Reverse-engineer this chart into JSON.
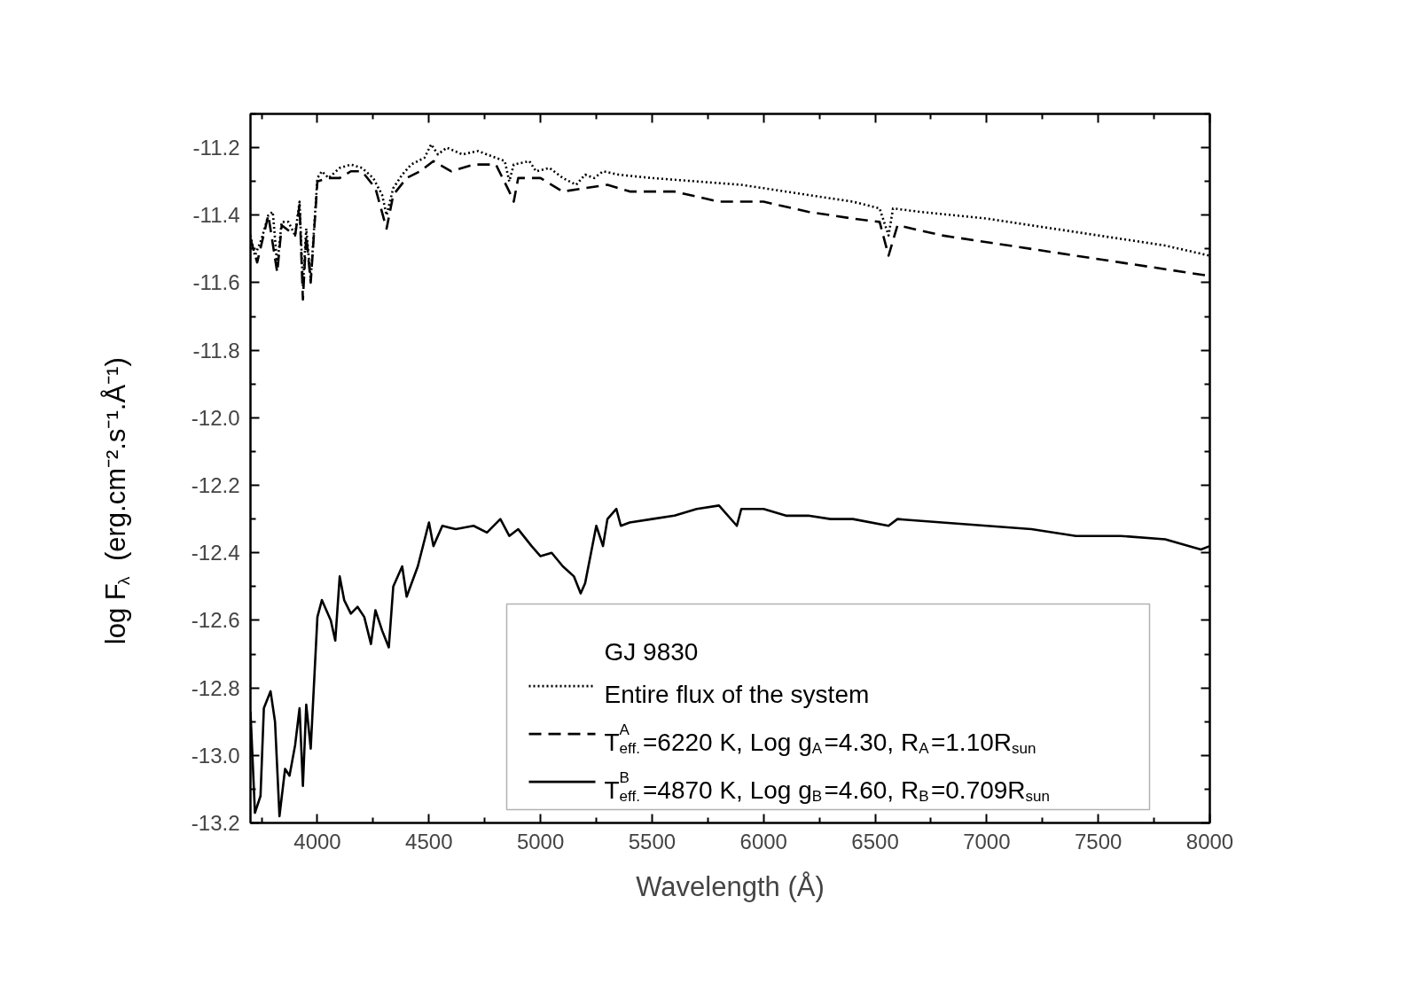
{
  "chart_data": {
    "type": "line",
    "xlabel": "Wavelength (Å)",
    "ylabel": "log F$_{λ}$ (erg.cm⁻².s⁻¹.Å⁻¹)",
    "legend_title": "GJ 9830",
    "xlim": [
      3700,
      8000
    ],
    "xticks": [
      4000,
      4500,
      5000,
      5500,
      6000,
      6500,
      7000,
      7500,
      8000
    ],
    "ylim": [
      -13.2,
      -11.1
    ],
    "yticks": [
      {
        "value": -13.2,
        "label": "-13.2"
      },
      {
        "value": -13.0,
        "label": "-13.0"
      },
      {
        "value": -12.8,
        "label": "-12.8"
      },
      {
        "value": -12.6,
        "label": "-12.6"
      },
      {
        "value": -12.4,
        "label": "-12.4"
      },
      {
        "value": -12.2,
        "label": "-12.2"
      },
      {
        "value": -12.0,
        "label": "-12.0"
      },
      {
        "value": -11.8,
        "label": "-11.8"
      },
      {
        "value": -11.6,
        "label": "-11.6"
      },
      {
        "value": -11.4,
        "label": "-11.4"
      },
      {
        "value": -11.2,
        "label": "-11.2"
      }
    ],
    "grid": false,
    "legend": "bottom right",
    "marker": "none",
    "series": [
      {
        "name": "Entire flux of the system",
        "color": "#000000",
        "line_style": "dotted",
        "x": [
          3700,
          3720,
          3750,
          3780,
          3800,
          3820,
          3840,
          3870,
          3900,
          3920,
          3935,
          3950,
          3970,
          4000,
          4020,
          4050,
          4100,
          4150,
          4200,
          4250,
          4290,
          4310,
          4340,
          4380,
          4420,
          4480,
          4510,
          4540,
          4580,
          4650,
          4720,
          4800,
          4840,
          4860,
          4880,
          4950,
          4980,
          5040,
          5100,
          5160,
          5200,
          5240,
          5280,
          5350,
          5500,
          5700,
          5900,
          6000,
          6200,
          6400,
          6520,
          6560,
          6580,
          6700,
          7000,
          7300,
          7600,
          7800,
          8000
        ],
        "values": [
          -11.46,
          -11.52,
          -11.47,
          -11.4,
          -11.39,
          -11.55,
          -11.42,
          -11.42,
          -11.46,
          -11.36,
          -11.61,
          -11.44,
          -11.59,
          -11.29,
          -11.27,
          -11.29,
          -11.26,
          -11.25,
          -11.26,
          -11.29,
          -11.34,
          -11.4,
          -11.32,
          -11.28,
          -11.25,
          -11.23,
          -11.19,
          -11.22,
          -11.2,
          -11.22,
          -11.21,
          -11.23,
          -11.24,
          -11.3,
          -11.25,
          -11.24,
          -11.27,
          -11.26,
          -11.29,
          -11.31,
          -11.28,
          -11.29,
          -11.27,
          -11.28,
          -11.29,
          -11.3,
          -11.31,
          -11.32,
          -11.34,
          -11.36,
          -11.38,
          -11.46,
          -11.38,
          -11.39,
          -11.41,
          -11.44,
          -11.47,
          -11.49,
          -11.52
        ]
      },
      {
        "name": "T$^{A}$$_{eff.}$=6220 K, Log g$_{A}$=4.30, R$_{A}$=1.10R$_{sun}$",
        "color": "#000000",
        "line_style": "dashed",
        "x": [
          3700,
          3730,
          3780,
          3820,
          3840,
          3900,
          3920,
          3935,
          3950,
          3970,
          4000,
          4050,
          4100,
          4150,
          4200,
          4260,
          4310,
          4340,
          4400,
          4460,
          4520,
          4600,
          4700,
          4800,
          4860,
          4880,
          4900,
          5000,
          5100,
          5200,
          5300,
          5400,
          5600,
          5800,
          6000,
          6200,
          6400,
          6520,
          6560,
          6600,
          6800,
          7000,
          7200,
          7400,
          7600,
          7800,
          8000
        ],
        "values": [
          -11.47,
          -11.54,
          -11.4,
          -11.57,
          -11.43,
          -11.46,
          -11.37,
          -11.65,
          -11.46,
          -11.6,
          -11.3,
          -11.29,
          -11.29,
          -11.27,
          -11.27,
          -11.32,
          -11.44,
          -11.34,
          -11.29,
          -11.27,
          -11.24,
          -11.27,
          -11.25,
          -11.25,
          -11.33,
          -11.36,
          -11.29,
          -11.29,
          -11.33,
          -11.32,
          -11.31,
          -11.33,
          -11.33,
          -11.36,
          -11.36,
          -11.39,
          -11.41,
          -11.42,
          -11.52,
          -11.43,
          -11.46,
          -11.48,
          -11.5,
          -11.52,
          -11.54,
          -11.56,
          -11.58
        ]
      },
      {
        "name": "T$^{B}$$_{eff.}$=4870 K, Log g$_{B}$=4.60, R$_{B}$=0.709R$_{sun}$",
        "color": "#000000",
        "line_style": "solid",
        "x": [
          3700,
          3720,
          3745,
          3760,
          3790,
          3810,
          3830,
          3855,
          3875,
          3900,
          3920,
          3935,
          3950,
          3970,
          4000,
          4020,
          4060,
          4080,
          4100,
          4120,
          4150,
          4180,
          4210,
          4240,
          4260,
          4290,
          4320,
          4340,
          4380,
          4400,
          4450,
          4500,
          4520,
          4560,
          4620,
          4700,
          4760,
          4820,
          4860,
          4900,
          4960,
          5000,
          5050,
          5100,
          5150,
          5180,
          5200,
          5250,
          5280,
          5300,
          5340,
          5360,
          5400,
          5500,
          5600,
          5700,
          5800,
          5880,
          5900,
          6000,
          6100,
          6200,
          6300,
          6400,
          6560,
          6600,
          6800,
          7000,
          7200,
          7400,
          7600,
          7800,
          7960,
          8000
        ],
        "values": [
          -12.87,
          -13.17,
          -13.12,
          -12.86,
          -12.81,
          -12.9,
          -13.18,
          -13.04,
          -13.06,
          -12.97,
          -12.86,
          -13.09,
          -12.85,
          -12.98,
          -12.59,
          -12.54,
          -12.6,
          -12.66,
          -12.47,
          -12.54,
          -12.58,
          -12.56,
          -12.59,
          -12.67,
          -12.57,
          -12.63,
          -12.68,
          -12.5,
          -12.44,
          -12.53,
          -12.44,
          -12.31,
          -12.38,
          -12.32,
          -12.33,
          -12.32,
          -12.34,
          -12.3,
          -12.35,
          -12.33,
          -12.38,
          -12.41,
          -12.4,
          -12.44,
          -12.47,
          -12.52,
          -12.49,
          -12.32,
          -12.38,
          -12.3,
          -12.27,
          -12.32,
          -12.31,
          -12.3,
          -12.29,
          -12.27,
          -12.26,
          -12.32,
          -12.27,
          -12.27,
          -12.29,
          -12.29,
          -12.3,
          -12.3,
          -12.32,
          -12.3,
          -12.31,
          -12.32,
          -12.33,
          -12.35,
          -12.35,
          -12.36,
          -12.39,
          -12.38
        ]
      }
    ]
  }
}
